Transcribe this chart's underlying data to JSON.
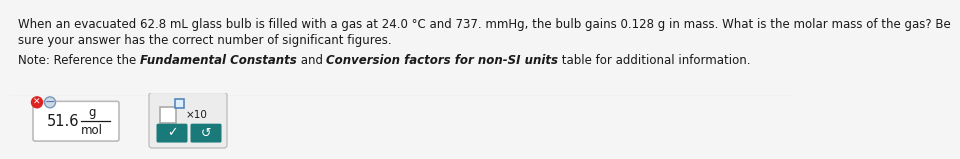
{
  "background_color": "#e8e8e8",
  "top_bg": "#f5f5f5",
  "bottom_bg": "#e0e0e0",
  "text_color": "#1a1a1a",
  "main_text_line1": "When an evacuated 62.8 mL glass bulb is filled with a gas at 24.0 °C and 737. mmHg, the bulb gains 0.128 g in mass. What is the molar mass of the gas? Be",
  "main_text_line2": "sure your answer has the correct number of significant figures.",
  "note_prefix": "Note: Reference the ",
  "note_bold1": "Fundamental Constants",
  "note_and": " and ",
  "note_bold2": "Conversion factors for non-SI units",
  "note_end": " table for additional information.",
  "answer_value": "51.6",
  "answer_unit_top": "g",
  "answer_unit_bottom": "mol",
  "box_fill": "#ffffff",
  "box_edge": "#bbbbbb",
  "red_circle_color": "#dd2222",
  "blue_circle_color": "#6688aa",
  "teal_button_color": "#1a7a7a",
  "panel_bg": "#d8d8d8",
  "font_size_main": 8.5,
  "font_size_note": 8.5,
  "font_size_answer": 10.5,
  "font_size_unit": 8.5
}
